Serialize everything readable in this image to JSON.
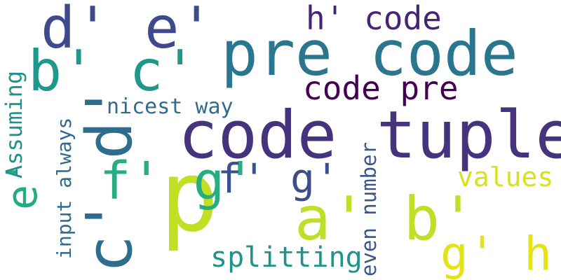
{
  "word_cloud": {
    "words": [
      {
        "text": "p",
        "color": "#c2df23"
      },
      {
        "text": "code tuple",
        "color": "#46337e"
      },
      {
        "text": "pre code",
        "color": "#2a768e"
      },
      {
        "text": "d' e'",
        "color": "#3e4a89"
      },
      {
        "text": "b' c'",
        "color": "#1f988b"
      },
      {
        "text": "a' b'",
        "color": "#bddf26"
      },
      {
        "text": "c' d'",
        "color": "#2e6d8e"
      },
      {
        "text": "code pre",
        "color": "#440154"
      },
      {
        "text": "h' code",
        "color": "#482475"
      },
      {
        "text": "f' g'",
        "color": "#27ad81"
      },
      {
        "text": "e'",
        "color": "#25ab82"
      },
      {
        "text": "f'",
        "color": "#3b518b"
      },
      {
        "text": "g'",
        "color": "#3e4c8a"
      },
      {
        "text": "g' h'",
        "color": "#e2e418"
      },
      {
        "text": "values",
        "color": "#d8e219"
      },
      {
        "text": "splitting",
        "color": "#20938c"
      },
      {
        "text": "nicest way",
        "color": "#2f6c8e"
      },
      {
        "text": "Assuming",
        "color": "#21918c"
      },
      {
        "text": "input always",
        "color": "#31688e"
      },
      {
        "text": "even number",
        "color": "#3a548c"
      }
    ]
  }
}
